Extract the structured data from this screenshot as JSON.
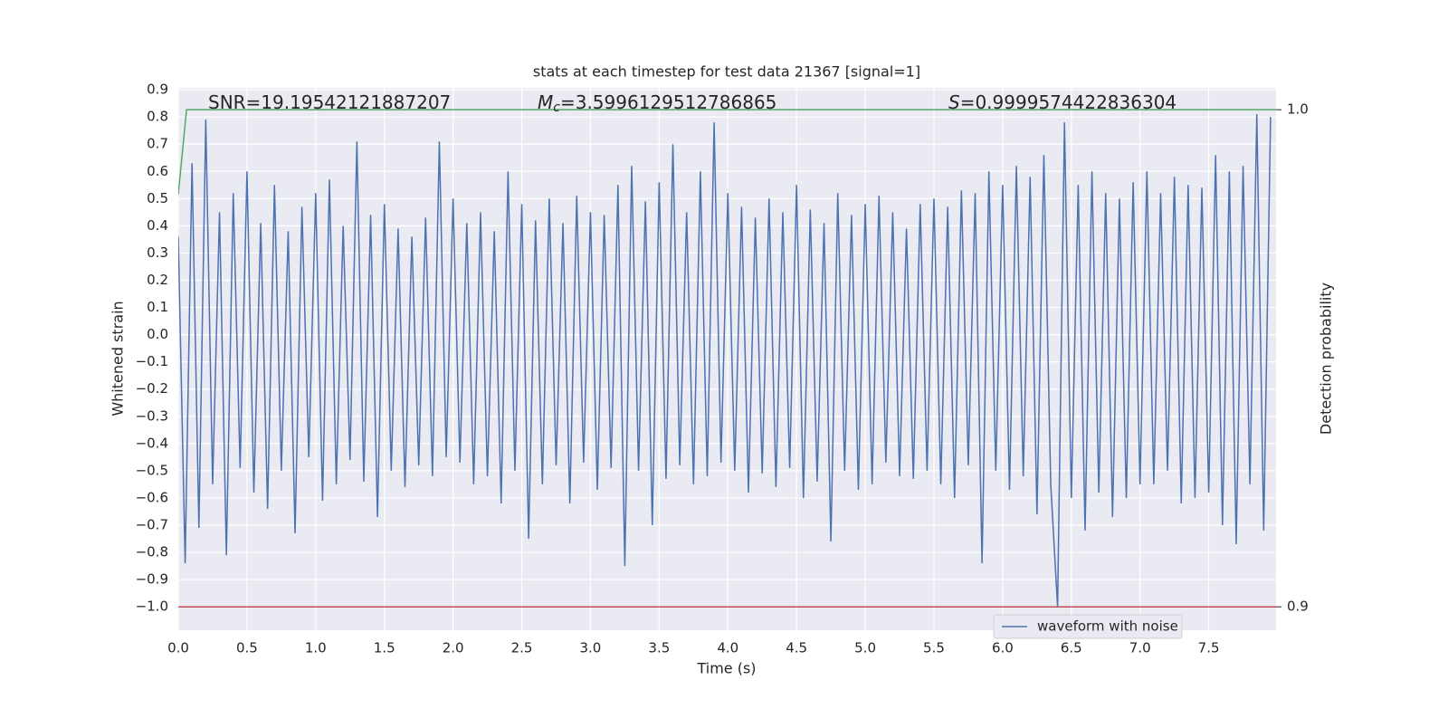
{
  "chart_data": {
    "type": "line",
    "title": "stats at each timestep for test data 21367 [signal=1]",
    "xlabel": "Time (s)",
    "ylabel": "Whitened strain",
    "y2label": "Detection probability",
    "annotations": [
      {
        "text": "SNR=19.19542121887207"
      },
      {
        "symbol": "M",
        "subscript": "c",
        "text": "=3.5996129512786865"
      },
      {
        "symbol": "S",
        "text": "=0.9999574422836304"
      }
    ],
    "xlim": [
      0,
      7.99
    ],
    "ylim": [
      -1.086,
      0.907
    ],
    "y2lim": [
      0.8953,
      1.0044
    ],
    "xticks": [
      {
        "value": 0,
        "label": "0.0"
      },
      0.5,
      {
        "value": 1,
        "label": "1.0"
      },
      1.5,
      {
        "value": 2,
        "label": "2.0"
      },
      2.5,
      {
        "value": 3,
        "label": "3.0"
      },
      3.5,
      {
        "value": 4,
        "label": "4.0"
      },
      4.5,
      {
        "value": 5,
        "label": "5.0"
      },
      5.5,
      {
        "value": 6,
        "label": "6.0"
      },
      6.5,
      {
        "value": 7,
        "label": "7.0"
      },
      7.5
    ],
    "yticks": [
      {
        "value": -1,
        "label": "−1.0"
      },
      {
        "value": -0.9,
        "label": "−0.9"
      },
      {
        "value": -0.8,
        "label": "−0.8"
      },
      {
        "value": -0.7,
        "label": "−0.7"
      },
      {
        "value": -0.6,
        "label": "−0.6"
      },
      {
        "value": -0.5,
        "label": "−0.5"
      },
      {
        "value": -0.4,
        "label": "−0.4"
      },
      {
        "value": -0.3,
        "label": "−0.3"
      },
      {
        "value": -0.2,
        "label": "−0.2"
      },
      {
        "value": -0.1,
        "label": "−0.1"
      },
      {
        "value": 0,
        "label": "0.0"
      },
      0.1,
      0.2,
      0.3,
      0.4,
      0.5,
      0.6,
      0.7,
      0.8,
      0.9
    ],
    "y2ticks": [
      0.9,
      {
        "value": 1,
        "label": "1.0"
      }
    ],
    "grid": true,
    "legend": "lower right",
    "series": [
      {
        "name": "waveform with noise",
        "color": "#4c72b0",
        "x": [
          0,
          0.05,
          0.1,
          0.15,
          0.2,
          0.25,
          0.3,
          0.35,
          0.4,
          0.45,
          0.5,
          0.55,
          0.6,
          0.65,
          0.7,
          0.75,
          0.8,
          0.85,
          0.9,
          0.95,
          1,
          1.05,
          1.1,
          1.15,
          1.2,
          1.25,
          1.3,
          1.35,
          1.4,
          1.45,
          1.5,
          1.55,
          1.6,
          1.65,
          1.7,
          1.75,
          1.8,
          1.85,
          1.9,
          1.95,
          2,
          2.05,
          2.1,
          2.15,
          2.2,
          2.25,
          2.3,
          2.35,
          2.4,
          2.45,
          2.5,
          2.55,
          2.6,
          2.65,
          2.7,
          2.75,
          2.8,
          2.85,
          2.9,
          2.95,
          3,
          3.05,
          3.1,
          3.15,
          3.2,
          3.25,
          3.3,
          3.35,
          3.4,
          3.45,
          3.5,
          3.55,
          3.6,
          3.65,
          3.7,
          3.75,
          3.8,
          3.85,
          3.9,
          3.95,
          4,
          4.05,
          4.1,
          4.15,
          4.2,
          4.25,
          4.3,
          4.35,
          4.4,
          4.45,
          4.5,
          4.55,
          4.6,
          4.65,
          4.7,
          4.75,
          4.8,
          4.85,
          4.9,
          4.95,
          5,
          5.05,
          5.1,
          5.15,
          5.2,
          5.25,
          5.3,
          5.35,
          5.4,
          5.45,
          5.5,
          5.55,
          5.6,
          5.65,
          5.7,
          5.75,
          5.8,
          5.85,
          5.9,
          5.95,
          6,
          6.05,
          6.1,
          6.15,
          6.2,
          6.25,
          6.3,
          6.35,
          6.4,
          6.45,
          6.5,
          6.55,
          6.6,
          6.65,
          6.7,
          6.75,
          6.8,
          6.85,
          6.9,
          6.95,
          7,
          7.05,
          7.1,
          7.15,
          7.2,
          7.25,
          7.3,
          7.35,
          7.4,
          7.45,
          7.5,
          7.55,
          7.6,
          7.65,
          7.7,
          7.75,
          7.8,
          7.85,
          7.9,
          7.95
        ],
        "values": [
          0.36,
          -0.84,
          0.63,
          -0.71,
          0.79,
          -0.55,
          0.45,
          -0.81,
          0.52,
          -0.49,
          0.6,
          -0.58,
          0.41,
          -0.64,
          0.55,
          -0.5,
          0.38,
          -0.73,
          0.47,
          -0.45,
          0.52,
          -0.61,
          0.57,
          -0.55,
          0.4,
          -0.46,
          0.71,
          -0.54,
          0.44,
          -0.67,
          0.48,
          -0.5,
          0.39,
          -0.56,
          0.36,
          -0.48,
          0.43,
          -0.52,
          0.71,
          -0.45,
          0.5,
          -0.47,
          0.41,
          -0.55,
          0.45,
          -0.52,
          0.38,
          -0.62,
          0.6,
          -0.5,
          0.48,
          -0.75,
          0.42,
          -0.55,
          0.5,
          -0.48,
          0.41,
          -0.62,
          0.51,
          -0.47,
          0.45,
          -0.57,
          0.44,
          -0.49,
          0.55,
          -0.85,
          0.62,
          -0.5,
          0.49,
          -0.7,
          0.56,
          -0.53,
          0.7,
          -0.48,
          0.45,
          -0.55,
          0.6,
          -0.52,
          0.78,
          -0.47,
          0.52,
          -0.5,
          0.47,
          -0.58,
          0.43,
          -0.51,
          0.5,
          -0.56,
          0.45,
          -0.49,
          0.55,
          -0.6,
          0.46,
          -0.54,
          0.41,
          -0.76,
          0.52,
          -0.5,
          0.44,
          -0.57,
          0.48,
          -0.55,
          0.51,
          -0.47,
          0.45,
          -0.52,
          0.39,
          -0.53,
          0.48,
          -0.5,
          0.5,
          -0.55,
          0.47,
          -0.6,
          0.53,
          -0.48,
          0.52,
          -0.84,
          0.6,
          -0.5,
          0.55,
          -0.57,
          0.62,
          -0.52,
          0.58,
          -0.66,
          0.66,
          -0.55,
          -1.0,
          0.78,
          -0.6,
          0.55,
          -0.72,
          0.6,
          -0.58,
          0.52,
          -0.67,
          0.5,
          -0.6,
          0.56,
          -0.55,
          0.6,
          -0.55,
          0.52,
          -0.5,
          0.58,
          -0.62,
          0.55,
          -0.6,
          0.54,
          -0.58,
          0.66,
          -0.7,
          0.6,
          -0.77,
          0.62,
          -0.55,
          0.81,
          -0.72,
          0.8
        ]
      },
      {
        "color": "#55a868",
        "axis": "y2",
        "x": [
          0,
          0.06,
          7.99
        ],
        "values": [
          0.983,
          1.0,
          1.0
        ]
      },
      {
        "color": "#c44e52",
        "axis": "y2",
        "x": [
          0,
          7.99
        ],
        "values": [
          0.9,
          0.9
        ]
      }
    ]
  }
}
